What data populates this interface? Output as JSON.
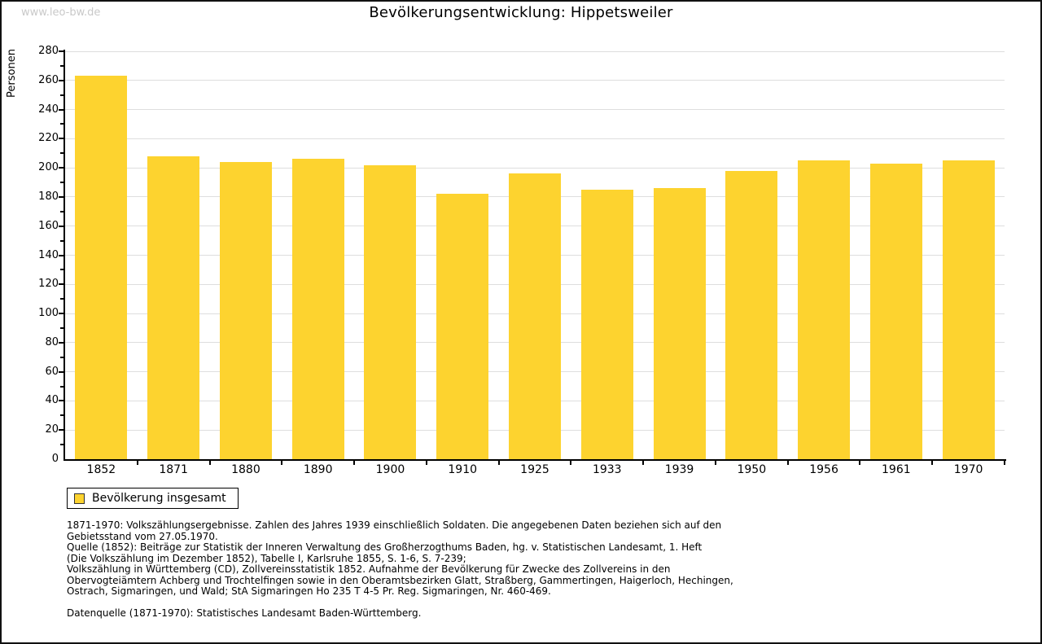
{
  "watermark": "www.leo-bw.de",
  "chart_data": {
    "type": "bar",
    "title": "Bevölkerungsentwicklung: Hippetsweiler",
    "xlabel": "",
    "ylabel": "Personen",
    "categories": [
      "1852",
      "1871",
      "1880",
      "1890",
      "1900",
      "1910",
      "1925",
      "1933",
      "1939",
      "1950",
      "1956",
      "1961",
      "1970"
    ],
    "values": [
      263,
      208,
      204,
      206,
      202,
      182,
      196,
      185,
      186,
      198,
      205,
      203,
      205
    ],
    "series_name": "Bevölkerung insgesamt",
    "ylim": [
      0,
      280
    ],
    "ytick_step": 20,
    "ytick_minor_step": 10,
    "grid": true,
    "bar_color": "#FDD32F",
    "legend_position": "bottom-left"
  },
  "legend": {
    "label": "Bevölkerung insgesamt"
  },
  "footer": {
    "lines": [
      "1871-1970: Volkszählungsergebnisse. Zahlen des Jahres 1939 einschließlich Soldaten. Die angegebenen Daten beziehen sich auf den",
      "Gebietsstand vom 27.05.1970.",
      "Quelle (1852): Beiträge zur Statistik der Inneren Verwaltung des Großherzogthums Baden, hg. v. Statistischen Landesamt, 1. Heft",
      "(Die Volkszählung im Dezember 1852), Tabelle I, Karlsruhe 1855, S. 1-6, S. 7-239;",
      "Volkszählung in Württemberg (CD), Zollvereinsstatistik 1852. Aufnahme der Bevölkerung für Zwecke des Zollvereins in den",
      "Obervogteiämtern Achberg und Trochtelfingen sowie in den Oberamtsbezirken Glatt, Straßberg, Gammertingen, Haigerloch, Hechingen,",
      "Ostrach, Sigmaringen, und Wald; StA Sigmaringen Ho 235 T 4-5 Pr. Reg. Sigmaringen, Nr. 460-469."
    ],
    "datasource": "Datenquelle (1871-1970): Statistisches Landesamt Baden-Württemberg."
  }
}
